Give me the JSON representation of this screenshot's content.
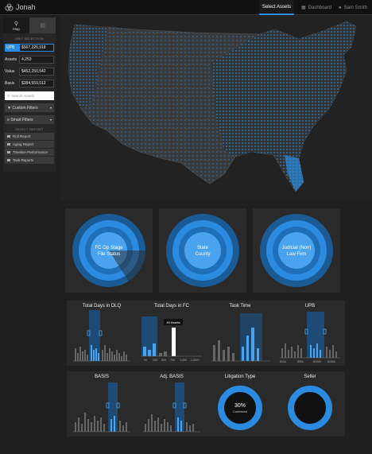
{
  "app": {
    "name": "Jonah"
  },
  "nav": {
    "select_assets": "Select Assets",
    "dashboard": "Dashboard",
    "user": "Sam Smith"
  },
  "sidebar": {
    "toggle": {
      "map": "Map",
      "list": "List"
    },
    "unit_selection": "UNIT SELECTION",
    "metrics": [
      {
        "label": "UPB",
        "value": "$567,226,918"
      },
      {
        "label": "Assets",
        "value": "4,253"
      },
      {
        "label": "Value",
        "value": "$452,250,542"
      },
      {
        "label": "Basis",
        "value": "$384,559,012"
      }
    ],
    "search_placeholder": "Search Assets",
    "custom_filters": "Custom Filters",
    "smart_filters": "Smart Filters",
    "select_report": "SELECT REPORT",
    "reports": [
      "Roll Report",
      "Aging Report",
      "Timeline Performance",
      "Task Reports"
    ]
  },
  "donuts": [
    {
      "l1": "FC Op Stage",
      "l2": "File Status"
    },
    {
      "l1": "State",
      "l2": "County"
    },
    {
      "l1": "Judicial (Non)",
      "l2": "Law Firm"
    }
  ],
  "charts": {
    "dlq": {
      "title": "Total Days in DLQ"
    },
    "fc": {
      "title": "Total Days in FC",
      "ticks": [
        "90",
        "250",
        "500",
        "750",
        "1,000",
        "1,500+"
      ],
      "tooltip": "49 Assets"
    },
    "task": {
      "title": "Task Time"
    },
    "upb": {
      "title": "UPB",
      "ticks": [
        "$10k",
        "$50k",
        "$100k",
        "$150k"
      ]
    },
    "basis": {
      "title": "BASIS"
    },
    "adj": {
      "title": "Adj. BASIS"
    },
    "lit": {
      "title": "Litigation Type",
      "pct": "30%",
      "sub": "Contested"
    },
    "seller": {
      "title": "Seller"
    }
  },
  "colors": {
    "accent": "#2b8be0",
    "dark_accent": "#1a5a95",
    "panel": "#2a2a2a"
  }
}
